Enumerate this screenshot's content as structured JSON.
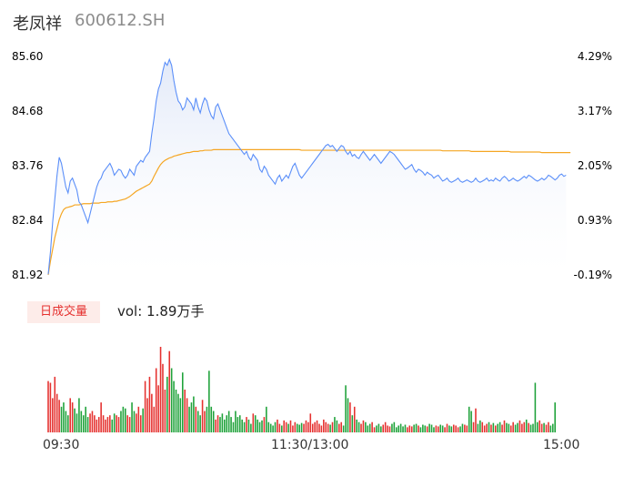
{
  "header": {
    "name": "老凤祥",
    "code": "600612.SH"
  },
  "colors": {
    "up": "#e5312f",
    "down": "#1fa23a",
    "price_line": "#5b8ff9",
    "avg_line": "#f5a623",
    "area_top": "#dfe7f8"
  },
  "y_left_ticks": [
    "85.60",
    "84.68",
    "83.76",
    "82.84",
    "81.92"
  ],
  "y_right_ticks": [
    "4.29%",
    "3.17%",
    "2.05%",
    "0.93%",
    "-0.19%"
  ],
  "volume": {
    "badge": "日成交量",
    "label": "vol: 1.89万手"
  },
  "x_ticks": [
    "09:30",
    "11:30/13:00",
    "15:00"
  ],
  "chart_data": [
    {
      "type": "line",
      "ylim": [
        81.92,
        85.6
      ],
      "y_right_range": [
        "-0.19%",
        "4.29%"
      ],
      "x_range": [
        "09:30",
        "15:00"
      ],
      "x_count": 240,
      "price": [
        81.93,
        82.3,
        82.8,
        83.2,
        83.6,
        83.9,
        83.8,
        83.6,
        83.4,
        83.3,
        83.5,
        83.55,
        83.45,
        83.35,
        83.15,
        83.1,
        83.0,
        82.9,
        82.8,
        82.95,
        83.1,
        83.25,
        83.4,
        83.5,
        83.55,
        83.65,
        83.7,
        83.75,
        83.8,
        83.72,
        83.6,
        83.65,
        83.7,
        83.68,
        83.6,
        83.55,
        83.6,
        83.7,
        83.65,
        83.6,
        83.75,
        83.8,
        83.85,
        83.82,
        83.9,
        83.95,
        84.0,
        84.3,
        84.55,
        84.85,
        85.05,
        85.15,
        85.35,
        85.5,
        85.45,
        85.55,
        85.45,
        85.2,
        85.0,
        84.85,
        84.8,
        84.7,
        84.75,
        84.9,
        84.85,
        84.8,
        84.7,
        84.9,
        84.75,
        84.65,
        84.8,
        84.9,
        84.85,
        84.7,
        84.6,
        84.55,
        84.75,
        84.8,
        84.7,
        84.6,
        84.5,
        84.4,
        84.3,
        84.25,
        84.2,
        84.15,
        84.1,
        84.05,
        84.0,
        83.95,
        84.0,
        83.9,
        83.85,
        83.95,
        83.9,
        83.85,
        83.7,
        83.65,
        83.75,
        83.7,
        83.6,
        83.55,
        83.5,
        83.45,
        83.55,
        83.6,
        83.5,
        83.55,
        83.6,
        83.55,
        83.65,
        83.75,
        83.8,
        83.7,
        83.6,
        83.55,
        83.6,
        83.65,
        83.7,
        83.75,
        83.8,
        83.85,
        83.9,
        83.95,
        84.0,
        84.05,
        84.1,
        84.12,
        84.08,
        84.1,
        84.05,
        84.0,
        84.05,
        84.1,
        84.08,
        84.0,
        83.95,
        84.0,
        83.92,
        83.95,
        83.9,
        83.88,
        83.95,
        84.0,
        83.95,
        83.9,
        83.85,
        83.9,
        83.95,
        83.9,
        83.85,
        83.8,
        83.85,
        83.9,
        83.95,
        84.0,
        83.98,
        83.95,
        83.9,
        83.85,
        83.8,
        83.75,
        83.7,
        83.72,
        83.75,
        83.78,
        83.7,
        83.65,
        83.7,
        83.68,
        83.65,
        83.6,
        83.65,
        83.62,
        83.6,
        83.55,
        83.58,
        83.6,
        83.55,
        83.5,
        83.52,
        83.55,
        83.5,
        83.48,
        83.5,
        83.52,
        83.55,
        83.5,
        83.48,
        83.5,
        83.52,
        83.5,
        83.48,
        83.5,
        83.55,
        83.5,
        83.48,
        83.5,
        83.52,
        83.55,
        83.5,
        83.52,
        83.5,
        83.55,
        83.52,
        83.5,
        83.55,
        83.58,
        83.55,
        83.5,
        83.52,
        83.55,
        83.52,
        83.5,
        83.52,
        83.55,
        83.58,
        83.55,
        83.6,
        83.58,
        83.55,
        83.52,
        83.5,
        83.52,
        83.55,
        83.52,
        83.55,
        83.6,
        83.58,
        83.55,
        83.52,
        83.55,
        83.6,
        83.62,
        83.58,
        83.6
      ],
      "avg_price": [
        81.92,
        82.15,
        82.35,
        82.55,
        82.7,
        82.85,
        82.95,
        83.02,
        83.05,
        83.06,
        83.07,
        83.08,
        83.1,
        83.1,
        83.1,
        83.11,
        83.12,
        83.12,
        83.12,
        83.12,
        83.13,
        83.13,
        83.13,
        83.13,
        83.14,
        83.14,
        83.14,
        83.15,
        83.15,
        83.15,
        83.16,
        83.16,
        83.17,
        83.18,
        83.19,
        83.2,
        83.22,
        83.24,
        83.27,
        83.3,
        83.33,
        83.35,
        83.37,
        83.39,
        83.41,
        83.43,
        83.45,
        83.5,
        83.58,
        83.65,
        83.72,
        83.78,
        83.82,
        83.85,
        83.87,
        83.89,
        83.9,
        83.92,
        83.93,
        83.94,
        83.95,
        83.96,
        83.97,
        83.98,
        83.98,
        83.99,
        84.0,
        84.0,
        84.0,
        84.01,
        84.01,
        84.02,
        84.02,
        84.02,
        84.02,
        84.03,
        84.03,
        84.03,
        84.03,
        84.03,
        84.03,
        84.03,
        84.03,
        84.03,
        84.03,
        84.03,
        84.03,
        84.03,
        84.03,
        84.03,
        84.03,
        84.03,
        84.03,
        84.03,
        84.03,
        84.03,
        84.03,
        84.03,
        84.03,
        84.03,
        84.03,
        84.03,
        84.03,
        84.03,
        84.03,
        84.03,
        84.03,
        84.03,
        84.03,
        84.03,
        84.03,
        84.03,
        84.03,
        84.03,
        84.03,
        84.02,
        84.02,
        84.02,
        84.02,
        84.02,
        84.02,
        84.02,
        84.02,
        84.02,
        84.02,
        84.02,
        84.02,
        84.02,
        84.02,
        84.02,
        84.02,
        84.02,
        84.02,
        84.02,
        84.02,
        84.02,
        84.02,
        84.02,
        84.02,
        84.02,
        84.02,
        84.02,
        84.02,
        84.02,
        84.02,
        84.02,
        84.02,
        84.02,
        84.02,
        84.02,
        84.02,
        84.02,
        84.02,
        84.02,
        84.02,
        84.02,
        84.02,
        84.02,
        84.02,
        84.02,
        84.02,
        84.02,
        84.02,
        84.02,
        84.02,
        84.02,
        84.02,
        84.02,
        84.02,
        84.02,
        84.02,
        84.02,
        84.02,
        84.02,
        84.02,
        84.02,
        84.02,
        84.02,
        84.02,
        84.01,
        84.01,
        84.01,
        84.01,
        84.01,
        84.01,
        84.01,
        84.01,
        84.01,
        84.01,
        84.01,
        84.01,
        84.01,
        84.0,
        84.0,
        84.0,
        84.0,
        84.0,
        84.0,
        84.0,
        84.0,
        84.0,
        84.0,
        84.0,
        84.0,
        84.0,
        84.0,
        84.0,
        84.0,
        84.0,
        84.0,
        83.99,
        83.99,
        83.99,
        83.99,
        83.99,
        83.99,
        83.99,
        83.99,
        83.99,
        83.99,
        83.99,
        83.99,
        83.99,
        83.99,
        83.98,
        83.98,
        83.98,
        83.98,
        83.98,
        83.98,
        83.98,
        83.98,
        83.98,
        83.98,
        83.98,
        83.98,
        83.98,
        83.98
      ]
    },
    {
      "type": "bar",
      "series": "volume",
      "ylim": [
        0,
        100
      ],
      "values": [
        60,
        58,
        40,
        65,
        45,
        38,
        30,
        35,
        25,
        20,
        40,
        35,
        28,
        22,
        40,
        25,
        20,
        30,
        18,
        22,
        25,
        20,
        15,
        18,
        35,
        20,
        15,
        18,
        20,
        15,
        22,
        20,
        18,
        25,
        30,
        28,
        20,
        18,
        35,
        25,
        22,
        30,
        20,
        28,
        60,
        40,
        65,
        45,
        30,
        75,
        55,
        100,
        80,
        50,
        65,
        95,
        75,
        60,
        50,
        45,
        40,
        70,
        50,
        40,
        30,
        35,
        42,
        30,
        25,
        20,
        38,
        25,
        30,
        72,
        30,
        25,
        15,
        20,
        18,
        22,
        15,
        20,
        25,
        18,
        12,
        25,
        18,
        20,
        15,
        12,
        18,
        15,
        10,
        22,
        20,
        15,
        12,
        14,
        18,
        30,
        12,
        10,
        8,
        12,
        15,
        10,
        8,
        14,
        12,
        10,
        14,
        8,
        12,
        10,
        9,
        11,
        10,
        14,
        12,
        22,
        10,
        12,
        14,
        10,
        8,
        15,
        12,
        10,
        9,
        12,
        18,
        14,
        10,
        12,
        8,
        55,
        40,
        35,
        20,
        30,
        15,
        12,
        10,
        14,
        12,
        8,
        10,
        12,
        6,
        8,
        10,
        7,
        9,
        12,
        8,
        7,
        10,
        12,
        6,
        8,
        10,
        7,
        9,
        6,
        8,
        7,
        9,
        10,
        8,
        6,
        9,
        8,
        7,
        10,
        9,
        6,
        8,
        7,
        9,
        8,
        6,
        10,
        8,
        7,
        9,
        8,
        6,
        7,
        10,
        9,
        8,
        30,
        25,
        12,
        28,
        10,
        14,
        12,
        8,
        10,
        12,
        9,
        11,
        8,
        10,
        12,
        9,
        14,
        11,
        10,
        8,
        12,
        9,
        11,
        14,
        10,
        12,
        15,
        11,
        9,
        10,
        58,
        12,
        14,
        10,
        11,
        9,
        12,
        8,
        10,
        35
      ]
    }
  ]
}
